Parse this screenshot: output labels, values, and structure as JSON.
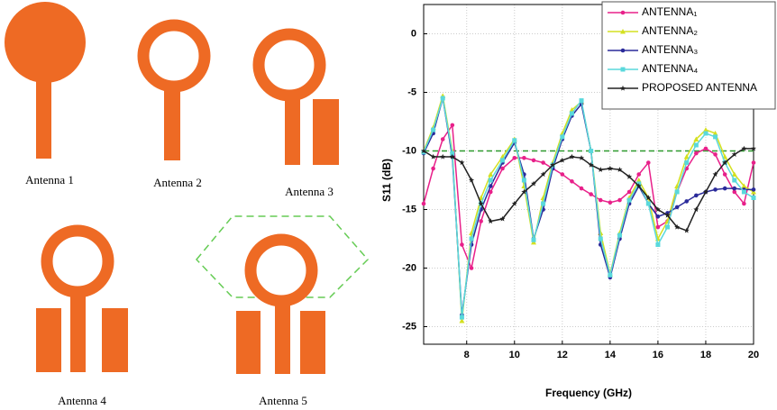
{
  "antenna_labels": [
    "Antenna 1",
    "Antenna 2",
    "Antenna 3",
    "Antenna 4",
    "Antenna 5"
  ],
  "chart_data": {
    "type": "line",
    "xlabel": "Frequency (GHz)",
    "ylabel": "S11 (dB)",
    "xlim": [
      6.2,
      20
    ],
    "ylim": [
      -26.5,
      2.5
    ],
    "xticks": [
      8,
      10,
      12,
      14,
      16,
      18,
      20
    ],
    "yticks": [
      0,
      -5,
      -10,
      -15,
      -20,
      -25
    ],
    "grid": true,
    "legend": "upper right",
    "hline": {
      "value": -10,
      "color": "#2e9a2e"
    },
    "x": [
      6.2,
      6.6,
      7.0,
      7.4,
      7.8,
      8.2,
      8.6,
      9.0,
      9.5,
      10,
      10.4,
      10.8,
      11.2,
      11.6,
      12,
      12.4,
      12.8,
      13.2,
      13.6,
      14,
      14.4,
      14.8,
      15.2,
      15.6,
      16,
      16.4,
      16.8,
      17.2,
      17.6,
      18,
      18.4,
      18.8,
      19.2,
      19.6,
      20
    ],
    "series": [
      {
        "name": "ANTENNA₁",
        "color": "#e8208a",
        "marker": "circle",
        "values": [
          -14.5,
          -11.5,
          -9,
          -7.8,
          -18,
          -20,
          -16,
          -13.5,
          -11.5,
          -10.6,
          -10.6,
          -10.8,
          -11,
          -11.5,
          -12,
          -12.6,
          -13.2,
          -13.7,
          -14.2,
          -14.4,
          -14.2,
          -13.5,
          -12,
          -11,
          -16.5,
          -16,
          -13.5,
          -11.5,
          -10.2,
          -9.8,
          -10.3,
          -12,
          -13.5,
          -14.5,
          -11
        ]
      },
      {
        "name": "ANTENNA₂",
        "color": "#d4e020",
        "marker": "triangle",
        "values": [
          -10,
          -8,
          -5.3,
          -10,
          -24.5,
          -17,
          -14,
          -12,
          -10.5,
          -9,
          -13,
          -17.8,
          -14,
          -11,
          -8.5,
          -6.5,
          -5.8,
          -10,
          -17,
          -20.5,
          -17,
          -14,
          -12.5,
          -14,
          -17.5,
          -16,
          -13,
          -10.5,
          -9,
          -8.2,
          -8.5,
          -10.5,
          -12,
          -13,
          -13.5
        ]
      },
      {
        "name": "ANTENNA₃",
        "color": "#2a2a9a",
        "marker": "circle",
        "values": [
          -10.2,
          -8.5,
          -5.5,
          -10.5,
          -24,
          -18,
          -15,
          -13,
          -11,
          -9.3,
          -12,
          -17.5,
          -15,
          -11.5,
          -9,
          -7,
          -6,
          -10,
          -18,
          -20.8,
          -17.5,
          -14.5,
          -13,
          -14.5,
          -15.6,
          -15.3,
          -14.8,
          -14.3,
          -13.8,
          -13.5,
          -13.3,
          -13.2,
          -13.2,
          -13.3,
          -13.3
        ]
      },
      {
        "name": "ANTENNA₄",
        "color": "#5ad8dc",
        "marker": "square",
        "values": [
          -10.1,
          -8.2,
          -5.5,
          -10.2,
          -24.2,
          -17.5,
          -14.5,
          -12.5,
          -10.8,
          -9.1,
          -12.5,
          -17.6,
          -14.5,
          -11.2,
          -8.8,
          -6.8,
          -5.7,
          -10,
          -17.5,
          -20.6,
          -17.2,
          -14.2,
          -12.8,
          -14.5,
          -18,
          -16.5,
          -13.5,
          -11,
          -9.5,
          -8.5,
          -8.8,
          -11,
          -12.5,
          -13.5,
          -14
        ]
      },
      {
        "name": "PROPOSED ANTENNA",
        "color": "#222222",
        "marker": "star",
        "values": [
          -10,
          -10.5,
          -10.5,
          -10.5,
          -11,
          -12.5,
          -14.5,
          -16,
          -15.8,
          -14.5,
          -13.5,
          -12.8,
          -12,
          -11.2,
          -10.8,
          -10.5,
          -10.6,
          -11.2,
          -11.6,
          -11.5,
          -11.6,
          -12.2,
          -13,
          -14,
          -15,
          -15.5,
          -16.5,
          -16.8,
          -15,
          -13.5,
          -12,
          -11,
          -10.3,
          -9.8,
          -9.8
        ]
      }
    ]
  }
}
